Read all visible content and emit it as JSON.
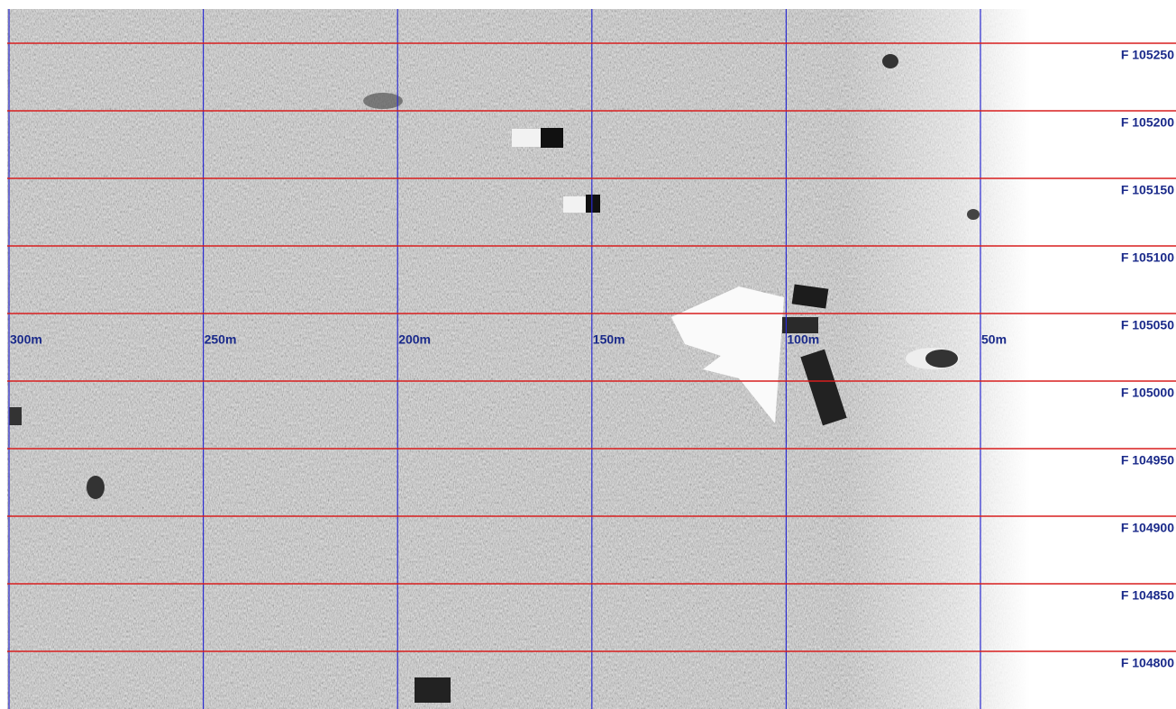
{
  "range_labels": [
    "300m",
    "250m",
    "200m",
    "150m",
    "100m",
    "50m"
  ],
  "fix_labels": [
    "F 105250",
    "F 105200",
    "F 105150",
    "F 105100",
    "F 105050",
    "F 105000",
    "F 104950",
    "F 104900",
    "F 104850",
    "F 104800"
  ]
}
